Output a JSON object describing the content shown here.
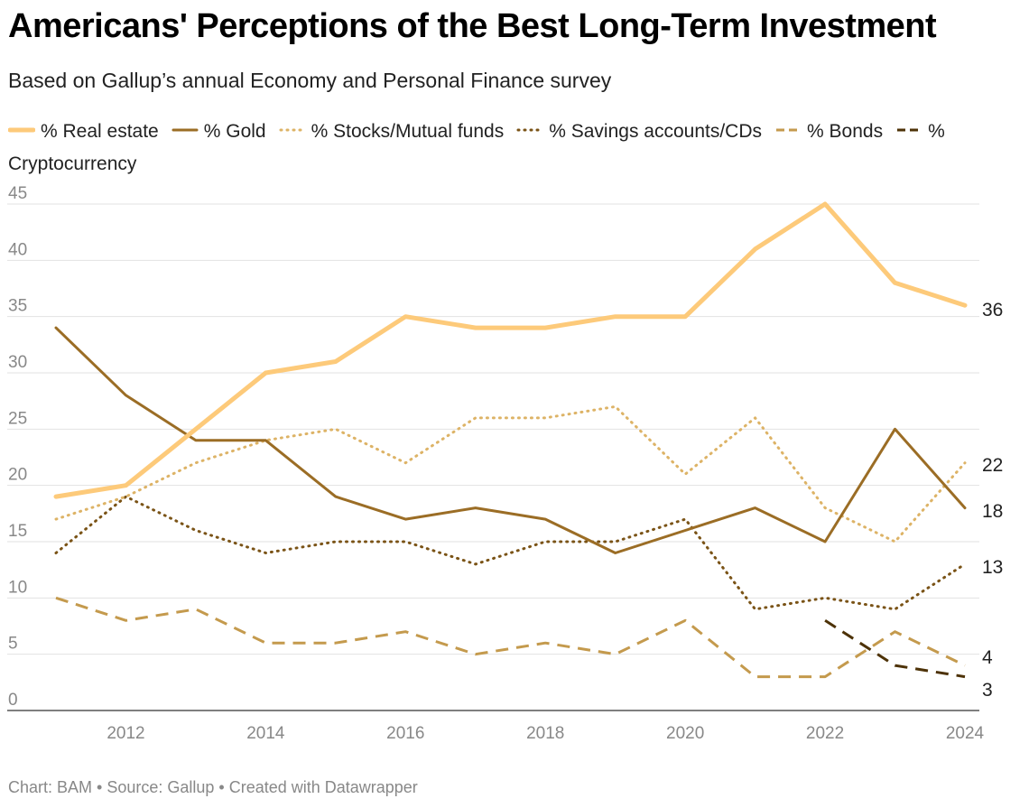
{
  "title": "Americans' Perceptions of the Best Long-Term Investment",
  "subtitle": "Based on Gallup’s annual Economy and Personal Finance survey",
  "footer": "Chart: BAM • Source: Gallup • Created with Datawrapper",
  "chart_data": {
    "type": "line",
    "title": "Americans' Perceptions of the Best Long-Term Investment",
    "subtitle": "Based on Gallup’s annual Economy and Personal Finance survey",
    "xlabel": "",
    "ylabel": "",
    "xlim": [
      2011,
      2024
    ],
    "ylim": [
      0,
      45
    ],
    "x_ticks": [
      "2012",
      "2014",
      "2016",
      "2018",
      "2020",
      "2022",
      "2024"
    ],
    "y_ticks": [
      "0",
      "5",
      "10",
      "15",
      "20",
      "25",
      "30",
      "35",
      "40",
      "45"
    ],
    "grid": "horizontal",
    "legend_position": "top",
    "series": [
      {
        "name": "% Real estate",
        "color": "#fdca7a",
        "style": "solid-thick",
        "x": [
          2011,
          2012,
          2013,
          2014,
          2015,
          2016,
          2017,
          2018,
          2019,
          2020,
          2021,
          2022,
          2023,
          2024
        ],
        "values": [
          19,
          20,
          25,
          30,
          31,
          35,
          34,
          34,
          35,
          35,
          41,
          45,
          38,
          36
        ],
        "end_label": "36"
      },
      {
        "name": "% Gold",
        "color": "#9b6d25",
        "style": "solid",
        "x": [
          2011,
          2012,
          2013,
          2014,
          2015,
          2016,
          2017,
          2018,
          2019,
          2020,
          2021,
          2022,
          2023,
          2024
        ],
        "values": [
          34,
          28,
          24,
          24,
          19,
          17,
          18,
          17,
          14,
          16,
          18,
          15,
          25,
          18
        ],
        "end_label": "18"
      },
      {
        "name": "% Stocks/Mutual funds",
        "color": "#ddb366",
        "style": "dotted",
        "x": [
          2011,
          2012,
          2013,
          2014,
          2015,
          2016,
          2017,
          2018,
          2019,
          2020,
          2021,
          2022,
          2023,
          2024
        ],
        "values": [
          17,
          19,
          22,
          24,
          25,
          22,
          26,
          26,
          27,
          21,
          26,
          18,
          15,
          22
        ],
        "end_label": "22"
      },
      {
        "name": "% Savings accounts/CDs",
        "color": "#7a5316",
        "style": "dotted",
        "x": [
          2011,
          2012,
          2013,
          2014,
          2015,
          2016,
          2017,
          2018,
          2019,
          2020,
          2021,
          2022,
          2023,
          2024
        ],
        "values": [
          14,
          19,
          16,
          14,
          15,
          15,
          13,
          15,
          15,
          17,
          9,
          10,
          9,
          13
        ],
        "end_label": "13"
      },
      {
        "name": "% Bonds",
        "color": "#c49a4d",
        "style": "dashed",
        "x": [
          2011,
          2012,
          2013,
          2014,
          2015,
          2016,
          2017,
          2018,
          2019,
          2020,
          2021,
          2022,
          2023,
          2024
        ],
        "values": [
          10,
          8,
          9,
          6,
          6,
          7,
          5,
          6,
          5,
          8,
          3,
          3,
          7,
          4
        ],
        "end_label": "4"
      },
      {
        "name": "% Cryptocurrency",
        "color": "#4d3207",
        "style": "dashed",
        "x": [
          2022,
          2023,
          2024
        ],
        "values": [
          8,
          4,
          3
        ],
        "end_label": "3"
      }
    ]
  }
}
